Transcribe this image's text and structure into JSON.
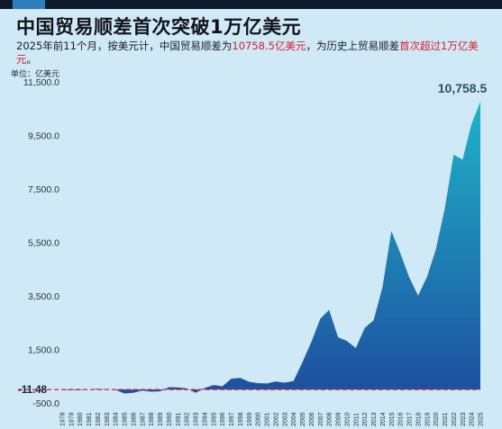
{
  "title": "中国贸易顺差首次突破1万亿美元",
  "subtitle": {
    "part1": "2025年前11个月，按美元计，中国贸易顺差为",
    "highlight1": "10758.5亿美元",
    "part2": "，为历史上贸易顺差",
    "highlight2": "首次超过1万亿美元",
    "part3": "。"
  },
  "colors": {
    "background": "#cfe9f6",
    "area_top": "#1fb3c8",
    "area_bottom": "#1e4fa0",
    "highlight": "#d61e2a",
    "baseline": "#d61e2a"
  },
  "chart_data": {
    "type": "area",
    "title": "中国贸易顺差首次突破1万亿美元",
    "ylabel": "单位：亿美元",
    "xlabel": "",
    "ylim": [
      -500,
      11500
    ],
    "yticks": [
      "11,500.0",
      "9,500.0",
      "7,500.0",
      "5,500.0",
      "3,500.0",
      "1,500.0",
      "-500.0"
    ],
    "ytick_values": [
      11500,
      9500,
      7500,
      5500,
      3500,
      1500,
      -500
    ],
    "x": [
      "1978",
      "1979",
      "1980",
      "1981",
      "1982",
      "1983",
      "1984",
      "1985",
      "1986",
      "1987",
      "1988",
      "1989",
      "1990",
      "1991",
      "1992",
      "1993",
      "1994",
      "1995",
      "1996",
      "1997",
      "1998",
      "1999",
      "2000",
      "2001",
      "2002",
      "2003",
      "2004",
      "2005",
      "2006",
      "2007",
      "2008",
      "2009",
      "2010",
      "2011",
      "2012",
      "2013",
      "2014",
      "2015",
      "2016",
      "2017",
      "2018",
      "2019",
      "2020",
      "2021",
      "2022",
      "2023",
      "2024",
      "2025"
    ],
    "series": [
      {
        "values": [
          -11.48,
          -20,
          -19,
          0,
          30,
          8,
          -13,
          -149,
          -120,
          -38,
          -78,
          -66,
          87,
          81,
          43,
          -122,
          54,
          167,
          122,
          404,
          435,
          292,
          241,
          225,
          304,
          255,
          321,
          1020,
          1775,
          2643,
          2981,
          1957,
          1815,
          1549,
          2303,
          2590,
          3825,
          5930,
          5097,
          4196,
          3509,
          4211,
          5240,
          6764,
          8776,
          8593,
          9922,
          10758.5
        ]
      }
    ],
    "annotations": {
      "end_label": "10,758.5",
      "start_label": "-11.48"
    }
  }
}
